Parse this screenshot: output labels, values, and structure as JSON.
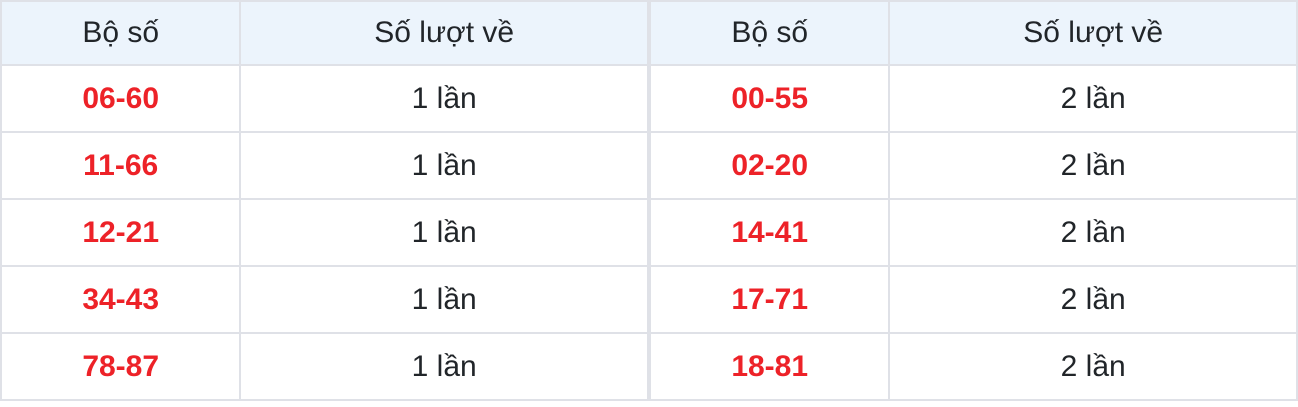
{
  "colors": {
    "header_bg": "#ecf4fc",
    "border": "#dfe1e7",
    "pair_red": "#ed2228",
    "text": "#212529"
  },
  "tables": [
    {
      "headers": {
        "pair": "Bộ số",
        "count": "Số lượt về"
      },
      "rows": [
        {
          "pair": "06-60",
          "count": "1 lần"
        },
        {
          "pair": "11-66",
          "count": "1 lần"
        },
        {
          "pair": "12-21",
          "count": "1 lần"
        },
        {
          "pair": "34-43",
          "count": "1 lần"
        },
        {
          "pair": "78-87",
          "count": "1 lần"
        }
      ]
    },
    {
      "headers": {
        "pair": "Bộ số",
        "count": "Số lượt về"
      },
      "rows": [
        {
          "pair": "00-55",
          "count": "2 lần"
        },
        {
          "pair": "02-20",
          "count": "2 lần"
        },
        {
          "pair": "14-41",
          "count": "2 lần"
        },
        {
          "pair": "17-71",
          "count": "2 lần"
        },
        {
          "pair": "18-81",
          "count": "2 lần"
        }
      ]
    }
  ]
}
